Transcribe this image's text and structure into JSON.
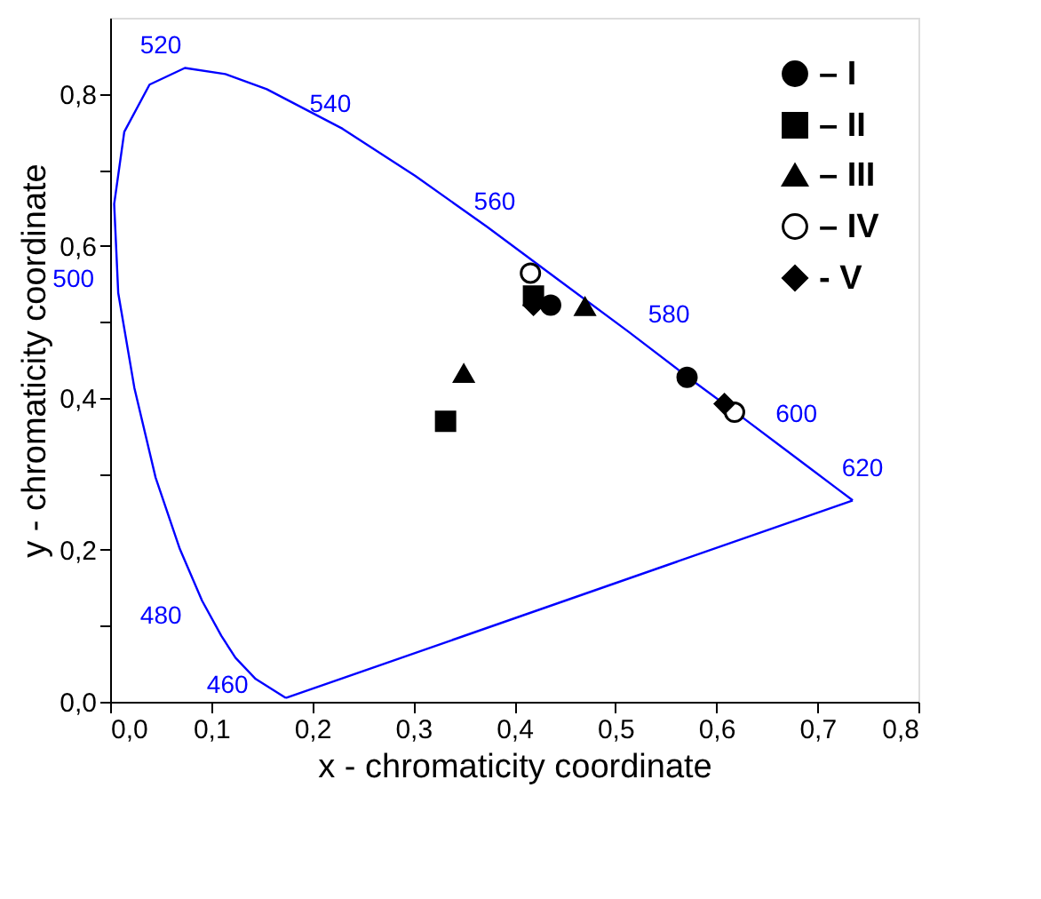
{
  "chart_data": {
    "type": "scatter",
    "xlabel": "x - chromaticity coordinate",
    "ylabel": "y - chromaticity coordinate",
    "xlim": [
      0,
      0.8
    ],
    "ylim": [
      0,
      0.9
    ],
    "xticks": [
      {
        "value": 0,
        "label": "0,0"
      },
      {
        "value": 0.1,
        "label": "0,1"
      },
      {
        "value": 0.2,
        "label": "0,2"
      },
      {
        "value": 0.3,
        "label": "0,3"
      },
      {
        "value": 0.4,
        "label": "0,4"
      },
      {
        "value": 0.5,
        "label": "0,5"
      },
      {
        "value": 0.6,
        "label": "0,6"
      },
      {
        "value": 0.7,
        "label": "0,7"
      },
      {
        "value": 0.8,
        "label": "0,8"
      }
    ],
    "yticks": [
      {
        "value": 0,
        "label": "0,0"
      },
      {
        "value": 0.1,
        "label": null
      },
      {
        "value": 0.2,
        "label": "0,2"
      },
      {
        "value": 0.3,
        "label": null
      },
      {
        "value": 0.4,
        "label": "0,4"
      },
      {
        "value": 0.5,
        "label": null
      },
      {
        "value": 0.6,
        "label": "0,6"
      },
      {
        "value": 0.7,
        "label": null
      },
      {
        "value": 0.8,
        "label": "0,8"
      }
    ],
    "grid": false,
    "legend": "top right",
    "series": [
      {
        "type": "line",
        "color": "#0000ff",
        "marker": "none",
        "x": [
          0.174,
          0.144,
          0.124,
          0.11,
          0.091,
          0.069,
          0.045,
          0.024,
          0.008,
          0.004,
          0.014,
          0.039,
          0.074,
          0.114,
          0.155,
          0.23,
          0.302,
          0.373,
          0.444,
          0.513,
          0.575,
          0.627,
          0.666,
          0.692,
          0.719,
          0.735
        ],
        "values": [
          0.005,
          0.03,
          0.058,
          0.087,
          0.133,
          0.201,
          0.295,
          0.413,
          0.538,
          0.655,
          0.75,
          0.812,
          0.834,
          0.826,
          0.806,
          0.754,
          0.692,
          0.625,
          0.555,
          0.487,
          0.424,
          0.373,
          0.334,
          0.308,
          0.281,
          0.265
        ]
      },
      {
        "type": "line",
        "color": "#0000ff",
        "marker": "none",
        "x": [
          0.735,
          0.174
        ],
        "values": [
          0.265,
          0.005
        ]
      },
      {
        "name": "– I",
        "marker": "circle",
        "color": "#000000",
        "x": [
          0.436,
          0.571
        ],
        "values": [
          0.522,
          0.427
        ]
      },
      {
        "name": "– II",
        "marker": "square",
        "color": "#000000",
        "x": [
          0.419,
          0.332
        ],
        "values": [
          0.534,
          0.369
        ]
      },
      {
        "name": "– III",
        "marker": "triangle",
        "color": "#000000",
        "x": [
          0.47,
          0.35
        ],
        "values": [
          0.52,
          0.432
        ]
      },
      {
        "name": "– IV",
        "marker": "circle",
        "color": "#ffffff",
        "x": [
          0.416,
          0.618
        ],
        "values": [
          0.564,
          0.381
        ]
      },
      {
        "name": "- V",
        "marker": "diamond",
        "color": "#000000",
        "x": [
          0.419,
          0.608
        ],
        "values": [
          0.522,
          0.392
        ]
      }
    ],
    "annotations": [
      {
        "text": "460",
        "x": 0.144,
        "y": 0.03
      },
      {
        "text": "480",
        "x": 0.091,
        "y": 0.133
      },
      {
        "text": "500",
        "x": 0.008,
        "y": 0.538
      },
      {
        "text": "520",
        "x": 0.074,
        "y": 0.834
      },
      {
        "text": "540",
        "x": 0.23,
        "y": 0.754
      },
      {
        "text": "560",
        "x": 0.373,
        "y": 0.625
      },
      {
        "text": "580",
        "x": 0.513,
        "y": 0.487
      },
      {
        "text": "600",
        "x": 0.627,
        "y": 0.373
      },
      {
        "text": "620",
        "x": 0.692,
        "y": 0.308
      }
    ]
  }
}
